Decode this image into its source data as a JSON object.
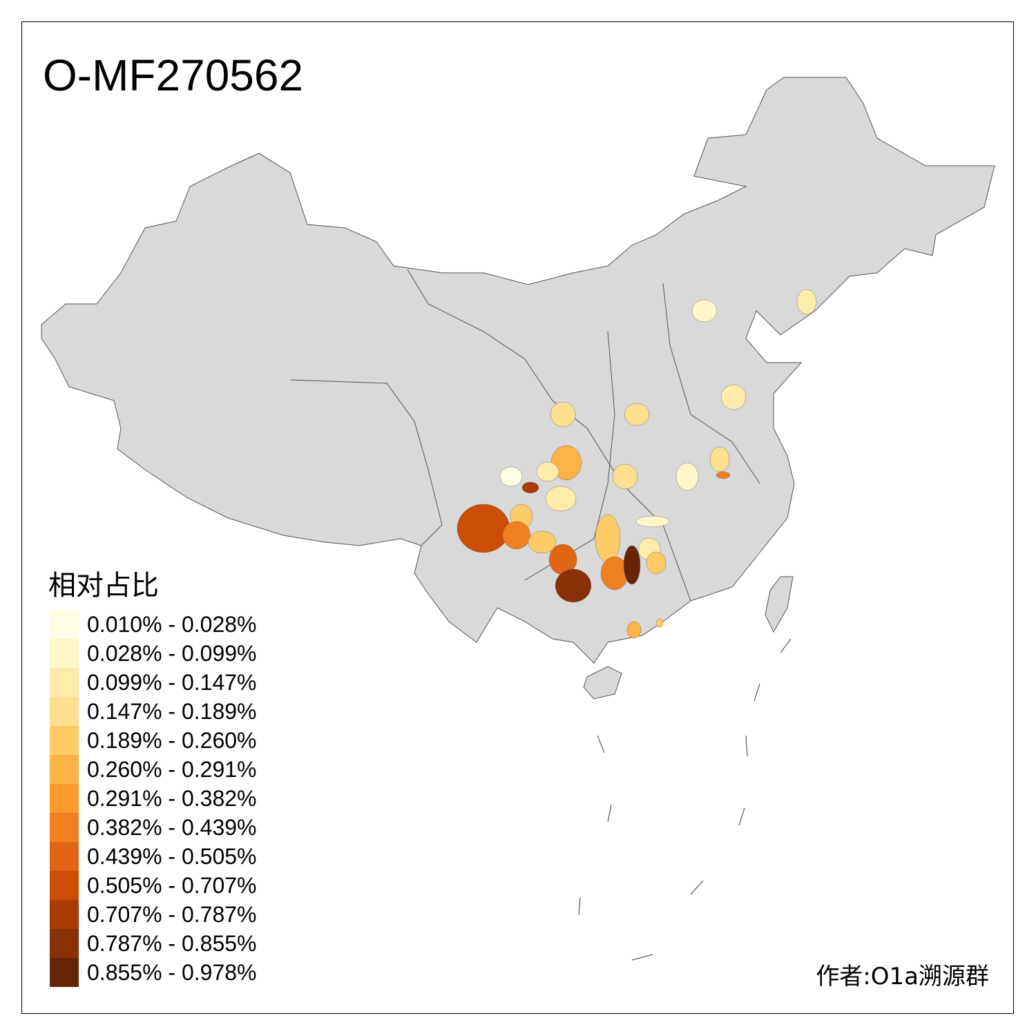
{
  "title": "O-MF270562",
  "legend": {
    "title": "相对占比",
    "items": [
      {
        "label": "0.010% - 0.028%",
        "color": "#FFFDE4"
      },
      {
        "label": "0.028% - 0.099%",
        "color": "#FFF6CA"
      },
      {
        "label": "0.099% - 0.147%",
        "color": "#FEEBAA"
      },
      {
        "label": "0.147% - 0.189%",
        "color": "#FEDF90"
      },
      {
        "label": "0.189% - 0.260%",
        "color": "#FECB66"
      },
      {
        "label": "0.260% - 0.291%",
        "color": "#FDB246"
      },
      {
        "label": "0.291% - 0.382%",
        "color": "#FB9A2D"
      },
      {
        "label": "0.382% - 0.439%",
        "color": "#F0801F"
      },
      {
        "label": "0.439% - 0.505%",
        "color": "#E06515"
      },
      {
        "label": "0.505% - 0.707%",
        "color": "#CC4E04"
      },
      {
        "label": "0.707% - 0.787%",
        "color": "#A93C05"
      },
      {
        "label": "0.787% - 0.855%",
        "color": "#8A3007"
      },
      {
        "label": "0.855% - 0.978%",
        "color": "#662506"
      }
    ]
  },
  "map": {
    "base_color": "#D9D9D9",
    "border_color": "#555555"
  },
  "author": "作者:O1a溯源群"
}
